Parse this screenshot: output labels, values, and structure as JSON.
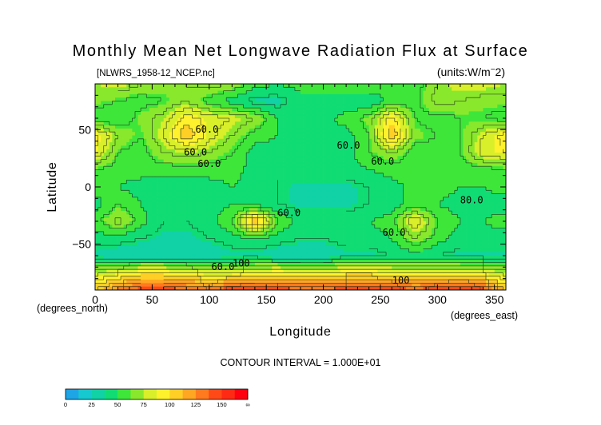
{
  "chart_data": {
    "type": "heatmap",
    "title": "Monthly Mean Net Longwave Radiation Flux at Surface",
    "subtitle_left": "[NLWRS_1958-12_NCEP.nc]",
    "subtitle_right": "(units:W/m^2)",
    "xlabel": "Longitude",
    "ylabel": "Latitude",
    "x_unit_label": "(degrees_east)",
    "y_unit_label": "(degrees_north)",
    "xlim": [
      0,
      360
    ],
    "ylim": [
      -90,
      90
    ],
    "x_ticks": [
      0,
      50,
      100,
      150,
      200,
      250,
      300,
      350
    ],
    "y_ticks": [
      -50,
      0,
      50
    ],
    "contour_interval_text": "CONTOUR INTERVAL = 1.000E+01",
    "contour_labels": [
      "60.0",
      "60.0",
      "60.0",
      "60.0",
      "60.0",
      "60.0",
      "60.0",
      "60.0",
      "100",
      "100",
      "80.0"
    ],
    "colorbar": {
      "tick_labels": [
        "0",
        "25",
        "50",
        "75",
        "100",
        "125",
        "150",
        "∞"
      ],
      "bins": [
        {
          "from": 0,
          "to": 12.5,
          "color": "#1ea5e6"
        },
        {
          "from": 12.5,
          "to": 25,
          "color": "#16c8cf"
        },
        {
          "from": 25,
          "to": 37.5,
          "color": "#10d2a6"
        },
        {
          "from": 37.5,
          "to": 50,
          "color": "#11dc74"
        },
        {
          "from": 50,
          "to": 62.5,
          "color": "#3ee63a"
        },
        {
          "from": 62.5,
          "to": 75,
          "color": "#8ae82c"
        },
        {
          "from": 75,
          "to": 87.5,
          "color": "#d8ef2a"
        },
        {
          "from": 87.5,
          "to": 100,
          "color": "#fff22c"
        },
        {
          "from": 100,
          "to": 112.5,
          "color": "#ffcf26"
        },
        {
          "from": 112.5,
          "to": 125,
          "color": "#ffa622"
        },
        {
          "from": 125,
          "to": 137.5,
          "color": "#ff7a1e"
        },
        {
          "from": 137.5,
          "to": 150,
          "color": "#ff4a18"
        },
        {
          "from": 150,
          "to": 162.5,
          "color": "#ff2a14"
        },
        {
          "from": 162.5,
          "to": 1000,
          "color": "#ff0010"
        }
      ]
    },
    "grid_lon": [
      0,
      20,
      40,
      60,
      80,
      100,
      120,
      140,
      160,
      180,
      200,
      220,
      240,
      260,
      280,
      300,
      320,
      340,
      360
    ],
    "grid_lat": [
      90,
      75,
      60,
      45,
      30,
      15,
      0,
      -15,
      -30,
      -45,
      -60,
      -75,
      -90
    ],
    "values": [
      [
        75,
        80,
        70,
        65,
        70,
        75,
        70,
        55,
        50,
        55,
        55,
        60,
        60,
        55,
        55,
        70,
        80,
        80,
        75
      ],
      [
        65,
        60,
        55,
        60,
        70,
        55,
        45,
        35,
        35,
        45,
        45,
        40,
        40,
        55,
        55,
        75,
        70,
        65,
        65
      ],
      [
        55,
        50,
        65,
        75,
        95,
        85,
        80,
        70,
        50,
        45,
        45,
        55,
        65,
        95,
        60,
        55,
        60,
        60,
        55
      ],
      [
        95,
        70,
        60,
        80,
        110,
        85,
        70,
        55,
        50,
        45,
        50,
        45,
        60,
        110,
        65,
        60,
        60,
        80,
        95
      ],
      [
        90,
        60,
        55,
        70,
        75,
        70,
        60,
        45,
        45,
        50,
        45,
        45,
        60,
        70,
        55,
        55,
        60,
        85,
        90
      ],
      [
        60,
        55,
        55,
        55,
        55,
        55,
        55,
        45,
        40,
        45,
        45,
        45,
        50,
        55,
        55,
        55,
        55,
        55,
        60
      ],
      [
        55,
        50,
        45,
        40,
        40,
        45,
        50,
        45,
        40,
        35,
        35,
        35,
        40,
        45,
        55,
        55,
        50,
        50,
        55
      ],
      [
        45,
        60,
        50,
        40,
        40,
        45,
        50,
        45,
        40,
        35,
        35,
        35,
        40,
        45,
        55,
        50,
        45,
        45,
        45
      ],
      [
        55,
        75,
        55,
        40,
        40,
        45,
        60,
        115,
        60,
        45,
        45,
        45,
        50,
        55,
        90,
        60,
        50,
        50,
        55
      ],
      [
        45,
        45,
        40,
        35,
        35,
        40,
        45,
        50,
        45,
        40,
        40,
        45,
        45,
        50,
        70,
        55,
        45,
        45,
        45
      ],
      [
        35,
        30,
        30,
        30,
        30,
        30,
        35,
        35,
        30,
        30,
        30,
        35,
        35,
        40,
        45,
        40,
        35,
        35,
        35
      ],
      [
        75,
        85,
        95,
        95,
        90,
        80,
        80,
        90,
        95,
        90,
        90,
        95,
        95,
        90,
        85,
        85,
        90,
        85,
        75
      ],
      [
        110,
        130,
        145,
        145,
        140,
        135,
        150,
        150,
        145,
        140,
        140,
        145,
        150,
        150,
        140,
        150,
        155,
        145,
        110
      ]
    ]
  }
}
